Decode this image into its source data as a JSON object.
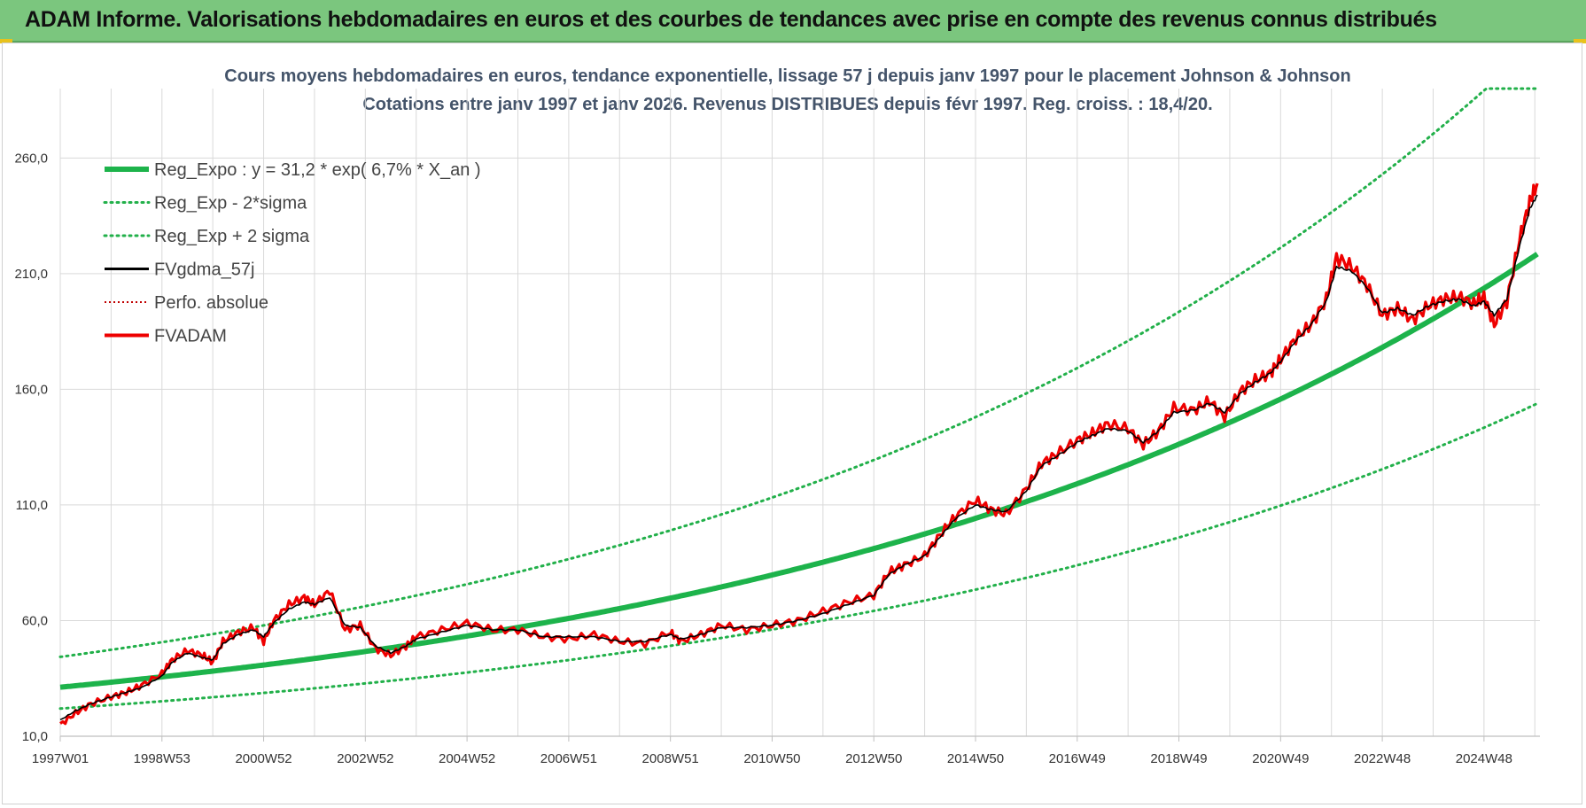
{
  "banner": {
    "title": "ADAM Informe. Valorisations hebdomadaires en euros et des courbes de tendances avec prise en compte des revenus connus distribués"
  },
  "colors": {
    "banner_bg": "#7bc67e",
    "reg_expo": "#1db34b",
    "sigma_lines": "#22b04a",
    "fvgdma": "#000000",
    "perfo": "#c00000",
    "fvadam": "#ee0000"
  },
  "chart_data": {
    "type": "line",
    "title": "Cours moyens hebdomadaires en euros, tendance exponentielle, lissage 57 j depuis janv 1997 pour le placement Johnson & Johnson",
    "subtitle": "Cotations entre janv 1997 et janv 2026. Revenus DISTRIBUES depuis févr 1997. Reg. croiss. : 18,4/20.",
    "xlabel": "",
    "ylabel": "",
    "ylim": [
      10,
      290
    ],
    "xlim": [
      1997.0,
      2026.1
    ],
    "y_ticks": [
      "10,0",
      "60,0",
      "110,0",
      "160,0",
      "210,0",
      "260,0"
    ],
    "x_ticks": [
      {
        "t": 1997.0,
        "label": "1997W01"
      },
      {
        "t": 1999.0,
        "label": "1998W53"
      },
      {
        "t": 2001.0,
        "label": "2000W52"
      },
      {
        "t": 2003.0,
        "label": "2002W52"
      },
      {
        "t": 2005.0,
        "label": "2004W52"
      },
      {
        "t": 2007.0,
        "label": "2006W51"
      },
      {
        "t": 2009.0,
        "label": "2008W51"
      },
      {
        "t": 2011.0,
        "label": "2010W50"
      },
      {
        "t": 2013.0,
        "label": "2012W50"
      },
      {
        "t": 2015.0,
        "label": "2014W50"
      },
      {
        "t": 2017.0,
        "label": "2016W49"
      },
      {
        "t": 2019.0,
        "label": "2018W49"
      },
      {
        "t": 2021.0,
        "label": "2020W49"
      },
      {
        "t": 2023.0,
        "label": "2022W48"
      },
      {
        "t": 2025.0,
        "label": "2024W48"
      }
    ],
    "grid": true,
    "legend_position": "top-left",
    "regression": {
      "a": 31.2,
      "rate": 0.067,
      "sigma_factor": 1.42
    },
    "legend": [
      {
        "key": "reg_expo",
        "label": "Reg_Expo : y = 31,2 * exp( 6,7% *  X_an )",
        "style": "thick"
      },
      {
        "key": "reg_minus",
        "label": "Reg_Exp - 2*sigma",
        "style": "dotted-green"
      },
      {
        "key": "reg_plus",
        "label": "Reg_Exp + 2 sigma",
        "style": "dotted-green"
      },
      {
        "key": "fvgdma",
        "label": "FVgdma_57j",
        "style": "black"
      },
      {
        "key": "perfo",
        "label": "Perfo. absolue",
        "style": "dotted-red"
      },
      {
        "key": "fvadam",
        "label": "FVADAM",
        "style": "thick-red"
      }
    ],
    "series": [
      {
        "name": "FVADAM",
        "x": [
          1997.0,
          1997.3,
          1997.6,
          1998.0,
          1998.3,
          1998.6,
          1999.0,
          1999.2,
          1999.5,
          1999.8,
          2000.0,
          2000.2,
          2000.5,
          2000.8,
          2001.0,
          2001.2,
          2001.5,
          2001.8,
          2002.0,
          2002.3,
          2002.6,
          2002.9,
          2003.2,
          2003.5,
          2003.8,
          2004.0,
          2004.5,
          2005.0,
          2005.5,
          2006.0,
          2006.5,
          2007.0,
          2007.5,
          2008.0,
          2008.5,
          2009.0,
          2009.2,
          2009.6,
          2010.0,
          2010.5,
          2011.0,
          2011.5,
          2012.0,
          2012.5,
          2013.0,
          2013.3,
          2013.6,
          2014.0,
          2014.3,
          2014.6,
          2015.0,
          2015.3,
          2015.6,
          2016.0,
          2016.3,
          2016.6,
          2017.0,
          2017.3,
          2017.6,
          2018.0,
          2018.3,
          2018.6,
          2018.9,
          2019.3,
          2019.6,
          2019.9,
          2020.2,
          2020.5,
          2020.8,
          2021.0,
          2021.3,
          2021.6,
          2021.9,
          2022.1,
          2022.4,
          2022.7,
          2023.0,
          2023.3,
          2023.6,
          2023.9,
          2024.2,
          2024.5,
          2024.8,
          2025.0,
          2025.2,
          2025.45,
          2025.7,
          2025.9,
          2026.05
        ],
        "y": [
          15,
          20,
          24,
          27,
          29,
          32,
          37,
          43,
          47,
          45,
          42,
          51,
          55,
          57,
          51,
          60,
          67,
          70,
          67,
          73,
          56,
          58,
          48,
          45,
          49,
          53,
          56,
          59,
          56,
          56,
          53,
          52,
          54,
          51,
          50,
          55,
          51,
          54,
          58,
          56,
          58,
          60,
          64,
          68,
          71,
          81,
          84,
          88,
          97,
          105,
          112,
          108,
          106,
          117,
          128,
          132,
          138,
          141,
          145,
          143,
          136,
          142,
          152,
          151,
          155,
          148,
          159,
          164,
          167,
          173,
          182,
          188,
          199,
          217,
          213,
          205,
          192,
          195,
          190,
          196,
          199,
          200,
          197,
          200,
          188,
          198,
          225,
          241,
          249
        ]
      },
      {
        "name": "FVgdma_57j",
        "x": [
          1997.0,
          1997.3,
          1997.6,
          1998.0,
          1998.3,
          1998.6,
          1999.0,
          1999.2,
          1999.5,
          1999.8,
          2000.0,
          2000.2,
          2000.5,
          2000.8,
          2001.0,
          2001.2,
          2001.5,
          2001.8,
          2002.0,
          2002.3,
          2002.6,
          2002.9,
          2003.2,
          2003.5,
          2003.8,
          2004.0,
          2004.5,
          2005.0,
          2005.5,
          2006.0,
          2006.5,
          2007.0,
          2007.5,
          2008.0,
          2008.5,
          2009.0,
          2009.2,
          2009.6,
          2010.0,
          2010.5,
          2011.0,
          2011.5,
          2012.0,
          2012.5,
          2013.0,
          2013.3,
          2013.6,
          2014.0,
          2014.3,
          2014.6,
          2015.0,
          2015.3,
          2015.6,
          2016.0,
          2016.3,
          2016.6,
          2017.0,
          2017.3,
          2017.6,
          2018.0,
          2018.3,
          2018.6,
          2018.9,
          2019.3,
          2019.6,
          2019.9,
          2020.2,
          2020.5,
          2020.8,
          2021.0,
          2021.3,
          2021.6,
          2021.9,
          2022.1,
          2022.4,
          2022.7,
          2023.0,
          2023.3,
          2023.6,
          2023.9,
          2024.2,
          2024.5,
          2024.8,
          2025.0,
          2025.2,
          2025.45,
          2025.7,
          2025.9,
          2026.05
        ],
        "y": [
          17,
          21,
          24,
          27,
          29,
          31,
          36,
          42,
          46,
          44,
          43,
          50,
          54,
          56,
          53,
          59,
          65,
          68,
          67,
          70,
          58,
          57,
          49,
          46,
          49,
          52,
          55,
          58,
          56,
          56,
          53,
          53,
          53,
          51,
          51,
          54,
          52,
          54,
          57,
          57,
          58,
          60,
          63,
          67,
          71,
          80,
          84,
          88,
          96,
          104,
          110,
          108,
          107,
          116,
          127,
          131,
          137,
          140,
          143,
          142,
          137,
          142,
          150,
          151,
          154,
          150,
          158,
          163,
          167,
          172,
          181,
          188,
          198,
          213,
          211,
          204,
          193,
          195,
          192,
          196,
          198,
          199,
          196,
          198,
          192,
          199,
          222,
          238,
          244
        ]
      }
    ]
  }
}
